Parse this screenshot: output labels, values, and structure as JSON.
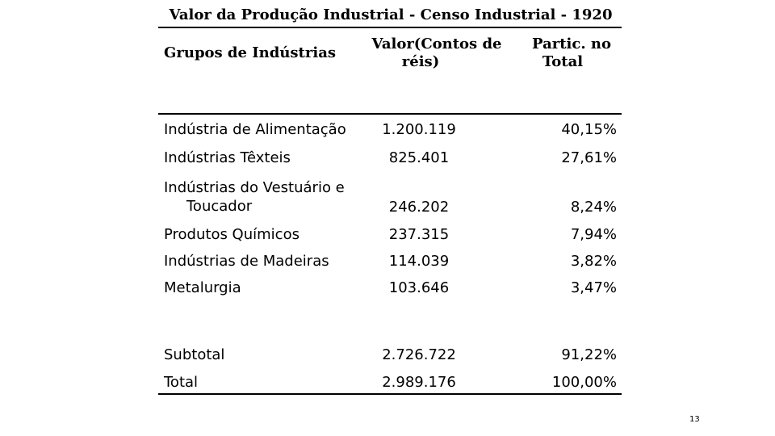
{
  "title": "Valor da Produção Industrial - Censo Industrial - 1920",
  "headers": {
    "group": "Grupos de Indústrias",
    "value_line1": "Valor(Contos de",
    "value_line2": "réis)",
    "share_line1": "Partic. no",
    "share_line2": "Total"
  },
  "rows": [
    {
      "name": "Indústria de Alimentação",
      "value": "1.200.119",
      "share": "40,15%"
    },
    {
      "name": "Indústrias Têxteis",
      "value": "825.401",
      "share": "27,61%"
    },
    {
      "name_line1": "Indústrias do Vestuário e",
      "name_line2": "Toucador",
      "value": "246.202",
      "share": "8,24%"
    },
    {
      "name": "Produtos Químicos",
      "value": "237.315",
      "share": "7,94%"
    },
    {
      "name": "Indústrias de Madeiras",
      "value": "114.039",
      "share": "3,82%"
    },
    {
      "name": "Metalurgia",
      "value": "103.646",
      "share": "3,47%"
    }
  ],
  "subtotal": {
    "name": "Subtotal",
    "value": "2.726.722",
    "share": "91,22%"
  },
  "total": {
    "name": "Total",
    "value": "2.989.176",
    "share": "100,00%"
  },
  "page_number": "13"
}
